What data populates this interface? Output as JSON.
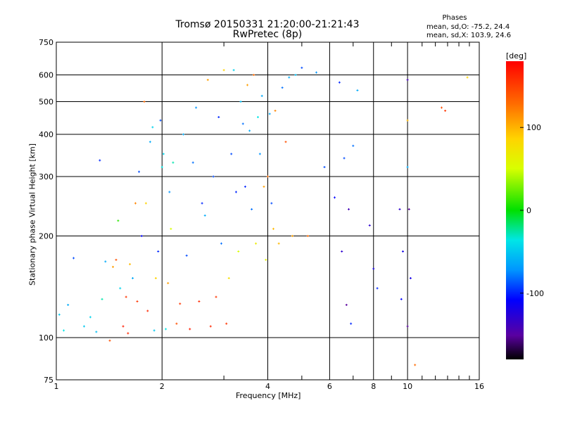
{
  "header": {
    "title_line1": "Tromsø 20150331 21:20:00-21:21:43",
    "title_line2": "RwPretec (8p)"
  },
  "phases": {
    "heading": "Phases",
    "o_stats": "mean, sd,O: -75.2, 24.4",
    "x_stats": "mean, sd,X: 103.9, 24.6"
  },
  "chart_data": {
    "type": "scatter",
    "xlabel": "Frequency [MHz]",
    "ylabel": "Stationary phase Virtual Height [km]",
    "x_scale": "log",
    "y_scale": "log",
    "xlim": [
      1,
      16
    ],
    "ylim": [
      75,
      750
    ],
    "x_ticks": [
      1,
      2,
      4,
      6,
      8,
      10,
      16
    ],
    "y_ticks": [
      75,
      100,
      200,
      300,
      400,
      500,
      600,
      750
    ],
    "grid": true,
    "colorbar": {
      "label": "[deg]",
      "range": [
        -180,
        180
      ],
      "ticks": [
        100,
        0,
        -100
      ]
    },
    "series": [
      {
        "points": [
          [
            1.02,
            117,
            -45
          ],
          [
            1.05,
            105,
            -30
          ],
          [
            1.08,
            125,
            -60
          ],
          [
            1.12,
            172,
            -90
          ],
          [
            1.2,
            108,
            -45
          ],
          [
            1.25,
            115,
            -40
          ],
          [
            1.3,
            104,
            -50
          ],
          [
            1.33,
            335,
            -100
          ],
          [
            1.35,
            130,
            -20
          ],
          [
            1.38,
            168,
            -60
          ],
          [
            1.42,
            98,
            150
          ],
          [
            1.45,
            162,
            120
          ],
          [
            1.48,
            170,
            150
          ],
          [
            1.5,
            222,
            20
          ],
          [
            1.52,
            140,
            -40
          ],
          [
            1.55,
            108,
            170
          ],
          [
            1.58,
            132,
            160
          ],
          [
            1.6,
            103,
            165
          ],
          [
            1.62,
            165,
            110
          ],
          [
            1.65,
            150,
            -60
          ],
          [
            1.68,
            250,
            130
          ],
          [
            1.7,
            128,
            160
          ],
          [
            1.72,
            310,
            -90
          ],
          [
            1.75,
            200,
            -110
          ],
          [
            1.78,
            500,
            140
          ],
          [
            1.8,
            250,
            100
          ],
          [
            1.82,
            120,
            165
          ],
          [
            1.85,
            380,
            -60
          ],
          [
            1.88,
            420,
            -40
          ],
          [
            1.9,
            105,
            -45
          ],
          [
            1.92,
            150,
            100
          ],
          [
            1.95,
            180,
            -100
          ],
          [
            1.98,
            440,
            -90
          ],
          [
            2.0,
            320,
            -30
          ],
          [
            2.02,
            350,
            -40
          ],
          [
            2.05,
            106,
            -30
          ],
          [
            2.08,
            145,
            120
          ],
          [
            2.1,
            270,
            -70
          ],
          [
            2.12,
            210,
            60
          ],
          [
            2.15,
            330,
            -20
          ],
          [
            2.2,
            110,
            150
          ],
          [
            2.25,
            126,
            160
          ],
          [
            2.3,
            400,
            -60
          ],
          [
            2.35,
            175,
            -90
          ],
          [
            2.4,
            106,
            170
          ],
          [
            2.45,
            330,
            -80
          ],
          [
            2.5,
            480,
            -70
          ],
          [
            2.55,
            128,
            165
          ],
          [
            2.6,
            250,
            -100
          ],
          [
            2.65,
            230,
            -60
          ],
          [
            2.7,
            580,
            120
          ],
          [
            2.75,
            108,
            165
          ],
          [
            2.8,
            300,
            -90
          ],
          [
            2.85,
            132,
            160
          ],
          [
            2.9,
            450,
            -100
          ],
          [
            2.95,
            190,
            -80
          ],
          [
            3.0,
            620,
            100
          ],
          [
            3.05,
            110,
            160
          ],
          [
            3.1,
            150,
            90
          ],
          [
            3.15,
            350,
            -90
          ],
          [
            3.2,
            620,
            -40
          ],
          [
            3.25,
            270,
            -100
          ],
          [
            3.3,
            180,
            60
          ],
          [
            3.35,
            500,
            -50
          ],
          [
            3.4,
            430,
            -80
          ],
          [
            3.45,
            280,
            -100
          ],
          [
            3.5,
            560,
            120
          ],
          [
            3.55,
            410,
            -60
          ],
          [
            3.6,
            240,
            -80
          ],
          [
            3.65,
            600,
            140
          ],
          [
            3.7,
            190,
            80
          ],
          [
            3.75,
            450,
            -30
          ],
          [
            3.8,
            350,
            -70
          ],
          [
            3.85,
            520,
            -60
          ],
          [
            3.9,
            280,
            120
          ],
          [
            3.95,
            170,
            70
          ],
          [
            4.0,
            300,
            140
          ],
          [
            4.05,
            460,
            -60
          ],
          [
            4.1,
            250,
            -90
          ],
          [
            4.15,
            210,
            110
          ],
          [
            4.2,
            470,
            130
          ],
          [
            4.3,
            190,
            110
          ],
          [
            4.4,
            550,
            -80
          ],
          [
            4.5,
            380,
            150
          ],
          [
            4.6,
            590,
            -60
          ],
          [
            4.7,
            200,
            120
          ],
          [
            4.8,
            600,
            -50
          ],
          [
            5.0,
            630,
            -90
          ],
          [
            5.2,
            200,
            140
          ],
          [
            5.5,
            610,
            -70
          ],
          [
            5.8,
            320,
            -90
          ],
          [
            6.2,
            260,
            -110
          ],
          [
            6.4,
            570,
            -100
          ],
          [
            6.5,
            180,
            -130
          ],
          [
            6.6,
            340,
            -90
          ],
          [
            6.7,
            125,
            -150
          ],
          [
            6.8,
            240,
            -140
          ],
          [
            6.9,
            110,
            -100
          ],
          [
            7.0,
            370,
            -80
          ],
          [
            7.2,
            540,
            -60
          ],
          [
            7.8,
            215,
            -130
          ],
          [
            8.0,
            160,
            -120
          ],
          [
            8.2,
            140,
            -100
          ],
          [
            9.5,
            240,
            -130
          ],
          [
            9.6,
            130,
            -110
          ],
          [
            9.7,
            180,
            -120
          ],
          [
            10.0,
            580,
            -140
          ],
          [
            10.0,
            440,
            110
          ],
          [
            10.0,
            320,
            -60
          ],
          [
            10.0,
            108,
            -150
          ],
          [
            10.1,
            240,
            -150
          ],
          [
            10.2,
            150,
            -120
          ],
          [
            10.5,
            83,
            140
          ],
          [
            12.5,
            480,
            150
          ],
          [
            12.8,
            470,
            160
          ],
          [
            14.8,
            590,
            100
          ]
        ]
      }
    ]
  }
}
